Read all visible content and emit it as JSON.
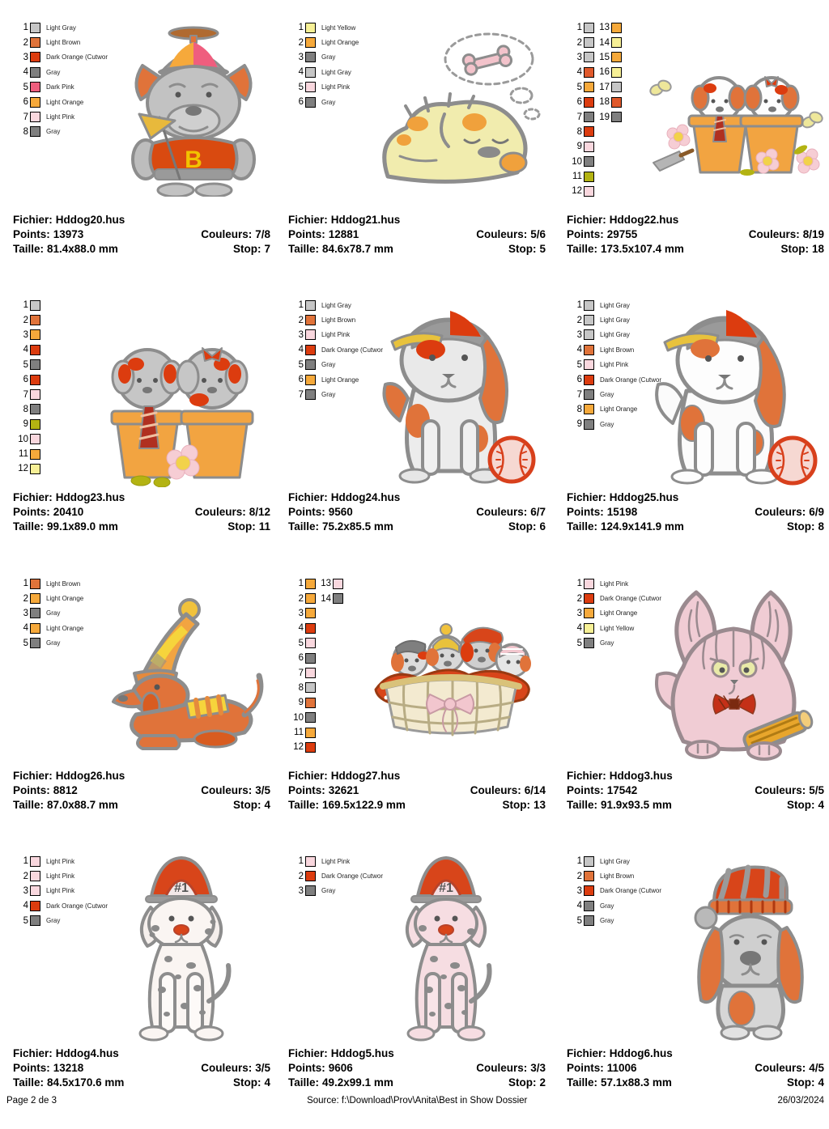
{
  "labels": {
    "fichier": "Fichier:",
    "points": "Points:",
    "couleurs": "Couleurs:",
    "taille": "Taille:",
    "stop": "Stop:"
  },
  "footer": {
    "page": "Page 2 de 3",
    "source": "Source: f:\\Download\\Prov\\Anita\\Best in Show Dossier",
    "date": "26/03/2024"
  },
  "cells": [
    {
      "fichier": "Hddog20.hus",
      "points": "13973",
      "couleurs": "7/8",
      "taille": "81.4x88.0 mm",
      "stop": "7",
      "design_caption": "bulldog with propeller beanie and letter sweater",
      "design_text": "B",
      "legend": [
        {
          "n": "1",
          "color": "#c6c6c6",
          "label": "Light Gray"
        },
        {
          "n": "2",
          "color": "#e0733a",
          "label": "Light Brown"
        },
        {
          "n": "3",
          "color": "#dc3c0f",
          "label": "Dark Orange (Cutwor"
        },
        {
          "n": "4",
          "color": "#7f7f7f",
          "label": "Gray"
        },
        {
          "n": "5",
          "color": "#ef5e7e",
          "label": "Dark Pink"
        },
        {
          "n": "6",
          "color": "#f6a93b",
          "label": "Light Orange"
        },
        {
          "n": "7",
          "color": "#f9d7de",
          "label": "Light Pink"
        },
        {
          "n": "8",
          "color": "#7f7f7f",
          "label": "Gray"
        }
      ]
    },
    {
      "fichier": "Hddog21.hus",
      "points": "12881",
      "couleurs": "5/6",
      "taille": "84.6x78.7 mm",
      "stop": "5",
      "design_caption": "sleeping puppy dreaming of a bone",
      "legend": [
        {
          "n": "1",
          "color": "#f7f096",
          "label": "Light Yellow"
        },
        {
          "n": "2",
          "color": "#f6a93b",
          "label": "Light Orange"
        },
        {
          "n": "3",
          "color": "#7f7f7f",
          "label": "Gray"
        },
        {
          "n": "4",
          "color": "#c6c6c6",
          "label": "Light Gray"
        },
        {
          "n": "5",
          "color": "#f9d7de",
          "label": "Light Pink"
        },
        {
          "n": "6",
          "color": "#7f7f7f",
          "label": "Gray"
        }
      ]
    },
    {
      "fichier": "Hddog22.hus",
      "points": "29755",
      "couleurs": "8/19",
      "taille": "173.5x107.4 mm",
      "stop": "18",
      "design_caption": "two puppies in flower pots with butterflies and flowers",
      "legend": [
        {
          "n": "1",
          "color": "#c6c6c6",
          "label": ""
        },
        {
          "n": "2",
          "color": "#c6c6c6",
          "label": ""
        },
        {
          "n": "3",
          "color": "#c6c6c6",
          "label": ""
        },
        {
          "n": "4",
          "color": "#e0592b",
          "label": ""
        },
        {
          "n": "5",
          "color": "#f6a93b",
          "label": ""
        },
        {
          "n": "6",
          "color": "#dc3c0f",
          "label": ""
        },
        {
          "n": "7",
          "color": "#7f7f7f",
          "label": ""
        },
        {
          "n": "8",
          "color": "#dc3c0f",
          "label": ""
        },
        {
          "n": "9",
          "color": "#f9d7de",
          "label": ""
        },
        {
          "n": "10",
          "color": "#7f7f7f",
          "label": ""
        },
        {
          "n": "11",
          "color": "#b3b312",
          "label": ""
        },
        {
          "n": "12",
          "color": "#f9d7de",
          "label": ""
        },
        {
          "n": "13",
          "color": "#f6a93b",
          "label": ""
        },
        {
          "n": "14",
          "color": "#f7f096",
          "label": ""
        },
        {
          "n": "15",
          "color": "#f6a93b",
          "label": ""
        },
        {
          "n": "16",
          "color": "#f7f096",
          "label": ""
        },
        {
          "n": "17",
          "color": "#c6c6c6",
          "label": ""
        },
        {
          "n": "18",
          "color": "#e0592b",
          "label": ""
        },
        {
          "n": "19",
          "color": "#7f7f7f",
          "label": ""
        }
      ]
    },
    {
      "fichier": "Hddog23.hus",
      "points": "20410",
      "couleurs": "8/12",
      "taille": "99.1x89.0 mm",
      "stop": "11",
      "design_caption": "two gray puppies in pots, one with tie one with bow",
      "legend": [
        {
          "n": "1",
          "color": "#c6c6c6",
          "label": ""
        },
        {
          "n": "2",
          "color": "#e0733a",
          "label": ""
        },
        {
          "n": "3",
          "color": "#f6a93b",
          "label": ""
        },
        {
          "n": "4",
          "color": "#dc3c0f",
          "label": ""
        },
        {
          "n": "5",
          "color": "#7f7f7f",
          "label": ""
        },
        {
          "n": "6",
          "color": "#dc3c0f",
          "label": ""
        },
        {
          "n": "7",
          "color": "#f9d7de",
          "label": ""
        },
        {
          "n": "8",
          "color": "#7f7f7f",
          "label": ""
        },
        {
          "n": "9",
          "color": "#b3b312",
          "label": ""
        },
        {
          "n": "10",
          "color": "#f9d7de",
          "label": ""
        },
        {
          "n": "11",
          "color": "#f6a93b",
          "label": ""
        },
        {
          "n": "12",
          "color": "#f7f096",
          "label": ""
        }
      ]
    },
    {
      "fichier": "Hddog24.hus",
      "points": "9560",
      "couleurs": "6/7",
      "taille": "75.2x85.5 mm",
      "stop": "6",
      "design_caption": "puppy with backwards cap and baseball",
      "legend": [
        {
          "n": "1",
          "color": "#c6c6c6",
          "label": "Light Gray"
        },
        {
          "n": "2",
          "color": "#e0733a",
          "label": "Light Brown"
        },
        {
          "n": "3",
          "color": "#f9d7de",
          "label": "Light Pink"
        },
        {
          "n": "4",
          "color": "#dc3c0f",
          "label": "Dark Orange (Cutwor"
        },
        {
          "n": "5",
          "color": "#7f7f7f",
          "label": "Gray"
        },
        {
          "n": "6",
          "color": "#f6a93b",
          "label": "Light Orange"
        },
        {
          "n": "7",
          "color": "#7f7f7f",
          "label": "Gray"
        }
      ]
    },
    {
      "fichier": "Hddog25.hus",
      "points": "15198",
      "couleurs": "6/9",
      "taille": "124.9x141.9 mm",
      "stop": "8",
      "design_caption": "applique puppy with cap and baseball",
      "legend": [
        {
          "n": "1",
          "color": "#c6c6c6",
          "label": "Light Gray"
        },
        {
          "n": "2",
          "color": "#c6c6c6",
          "label": "Light Gray"
        },
        {
          "n": "3",
          "color": "#c6c6c6",
          "label": "Light Gray"
        },
        {
          "n": "4",
          "color": "#e0733a",
          "label": "Light Brown"
        },
        {
          "n": "5",
          "color": "#f9d7de",
          "label": "Light Pink"
        },
        {
          "n": "6",
          "color": "#dc3c0f",
          "label": "Dark Orange (Cutwor"
        },
        {
          "n": "7",
          "color": "#7f7f7f",
          "label": "Gray"
        },
        {
          "n": "8",
          "color": "#f6a93b",
          "label": "Light Orange"
        },
        {
          "n": "9",
          "color": "#7f7f7f",
          "label": "Gray"
        }
      ]
    },
    {
      "fichier": "Hddog26.hus",
      "points": "8812",
      "couleurs": "3/5",
      "taille": "87.0x88.7 mm",
      "stop": "4",
      "design_caption": "lying dachshund with striped hat and scarf",
      "legend": [
        {
          "n": "1",
          "color": "#e0733a",
          "label": "Light Brown"
        },
        {
          "n": "2",
          "color": "#f6a93b",
          "label": "Light Orange"
        },
        {
          "n": "3",
          "color": "#7f7f7f",
          "label": "Gray"
        },
        {
          "n": "4",
          "color": "#f6a93b",
          "label": "Light Orange"
        },
        {
          "n": "5",
          "color": "#7f7f7f",
          "label": "Gray"
        }
      ]
    },
    {
      "fichier": "Hddog27.hus",
      "points": "32621",
      "couleurs": "6/14",
      "taille": "169.5x122.9 mm",
      "stop": "13",
      "design_caption": "basket of puppies wearing hats with pink bow",
      "legend": [
        {
          "n": "1",
          "color": "#f6a93b",
          "label": ""
        },
        {
          "n": "2",
          "color": "#f6a93b",
          "label": ""
        },
        {
          "n": "3",
          "color": "#f6a93b",
          "label": ""
        },
        {
          "n": "4",
          "color": "#dc3c0f",
          "label": ""
        },
        {
          "n": "5",
          "color": "#f9d7de",
          "label": ""
        },
        {
          "n": "6",
          "color": "#7f7f7f",
          "label": ""
        },
        {
          "n": "7",
          "color": "#f9d7de",
          "label": ""
        },
        {
          "n": "8",
          "color": "#c6c6c6",
          "label": ""
        },
        {
          "n": "9",
          "color": "#e0733a",
          "label": ""
        },
        {
          "n": "10",
          "color": "#7f7f7f",
          "label": ""
        },
        {
          "n": "11",
          "color": "#f6a93b",
          "label": ""
        },
        {
          "n": "12",
          "color": "#dc3c0f",
          "label": ""
        },
        {
          "n": "13",
          "color": "#f9d7de",
          "label": ""
        },
        {
          "n": "14",
          "color": "#7f7f7f",
          "label": ""
        }
      ]
    },
    {
      "fichier": "Hddog3.hus",
      "points": "17542",
      "couleurs": "5/5",
      "taille": "91.9x93.5 mm",
      "stop": "4",
      "design_caption": "shaggy pink dog with bow tie and rolled newspaper",
      "legend": [
        {
          "n": "1",
          "color": "#f9d7de",
          "label": "Light Pink"
        },
        {
          "n": "2",
          "color": "#dc3c0f",
          "label": "Dark Orange (Cutwor"
        },
        {
          "n": "3",
          "color": "#f6a93b",
          "label": "Light Orange"
        },
        {
          "n": "4",
          "color": "#f7f096",
          "label": "Light Yellow"
        },
        {
          "n": "5",
          "color": "#7f7f7f",
          "label": "Gray"
        }
      ]
    },
    {
      "fichier": "Hddog4.hus",
      "points": "13218",
      "couleurs": "3/5",
      "taille": "84.5x170.6 mm",
      "stop": "4",
      "design_caption": "dalmatian with number one fire helmet",
      "design_text": "#1",
      "legend": [
        {
          "n": "1",
          "color": "#f9d7de",
          "label": "Light Pink"
        },
        {
          "n": "2",
          "color": "#f9d7de",
          "label": "Light Pink"
        },
        {
          "n": "3",
          "color": "#f9d7de",
          "label": "Light Pink"
        },
        {
          "n": "4",
          "color": "#dc3c0f",
          "label": "Dark Orange (Cutwor"
        },
        {
          "n": "5",
          "color": "#7f7f7f",
          "label": "Gray"
        }
      ]
    },
    {
      "fichier": "Hddog5.hus",
      "points": "9606",
      "couleurs": "3/3",
      "taille": "49.2x99.1 mm",
      "stop": "2",
      "design_caption": "pink dalmatian with number one fire helmet",
      "design_text": "#1",
      "legend": [
        {
          "n": "1",
          "color": "#f9d7de",
          "label": "Light Pink"
        },
        {
          "n": "2",
          "color": "#dc3c0f",
          "label": "Dark Orange (Cutwor"
        },
        {
          "n": "3",
          "color": "#7f7f7f",
          "label": "Gray"
        }
      ]
    },
    {
      "fichier": "Hddog6.hus",
      "points": "11006",
      "couleurs": "4/5",
      "taille": "57.1x88.3 mm",
      "stop": "4",
      "design_caption": "basset hound with striped stocking cap",
      "legend": [
        {
          "n": "1",
          "color": "#c6c6c6",
          "label": "Light Gray"
        },
        {
          "n": "2",
          "color": "#e0733a",
          "label": "Light Brown"
        },
        {
          "n": "3",
          "color": "#dc3c0f",
          "label": "Dark Orange (Cutwor"
        },
        {
          "n": "4",
          "color": "#7f7f7f",
          "label": "Gray"
        },
        {
          "n": "5",
          "color": "#7f7f7f",
          "label": "Gray"
        }
      ]
    }
  ]
}
